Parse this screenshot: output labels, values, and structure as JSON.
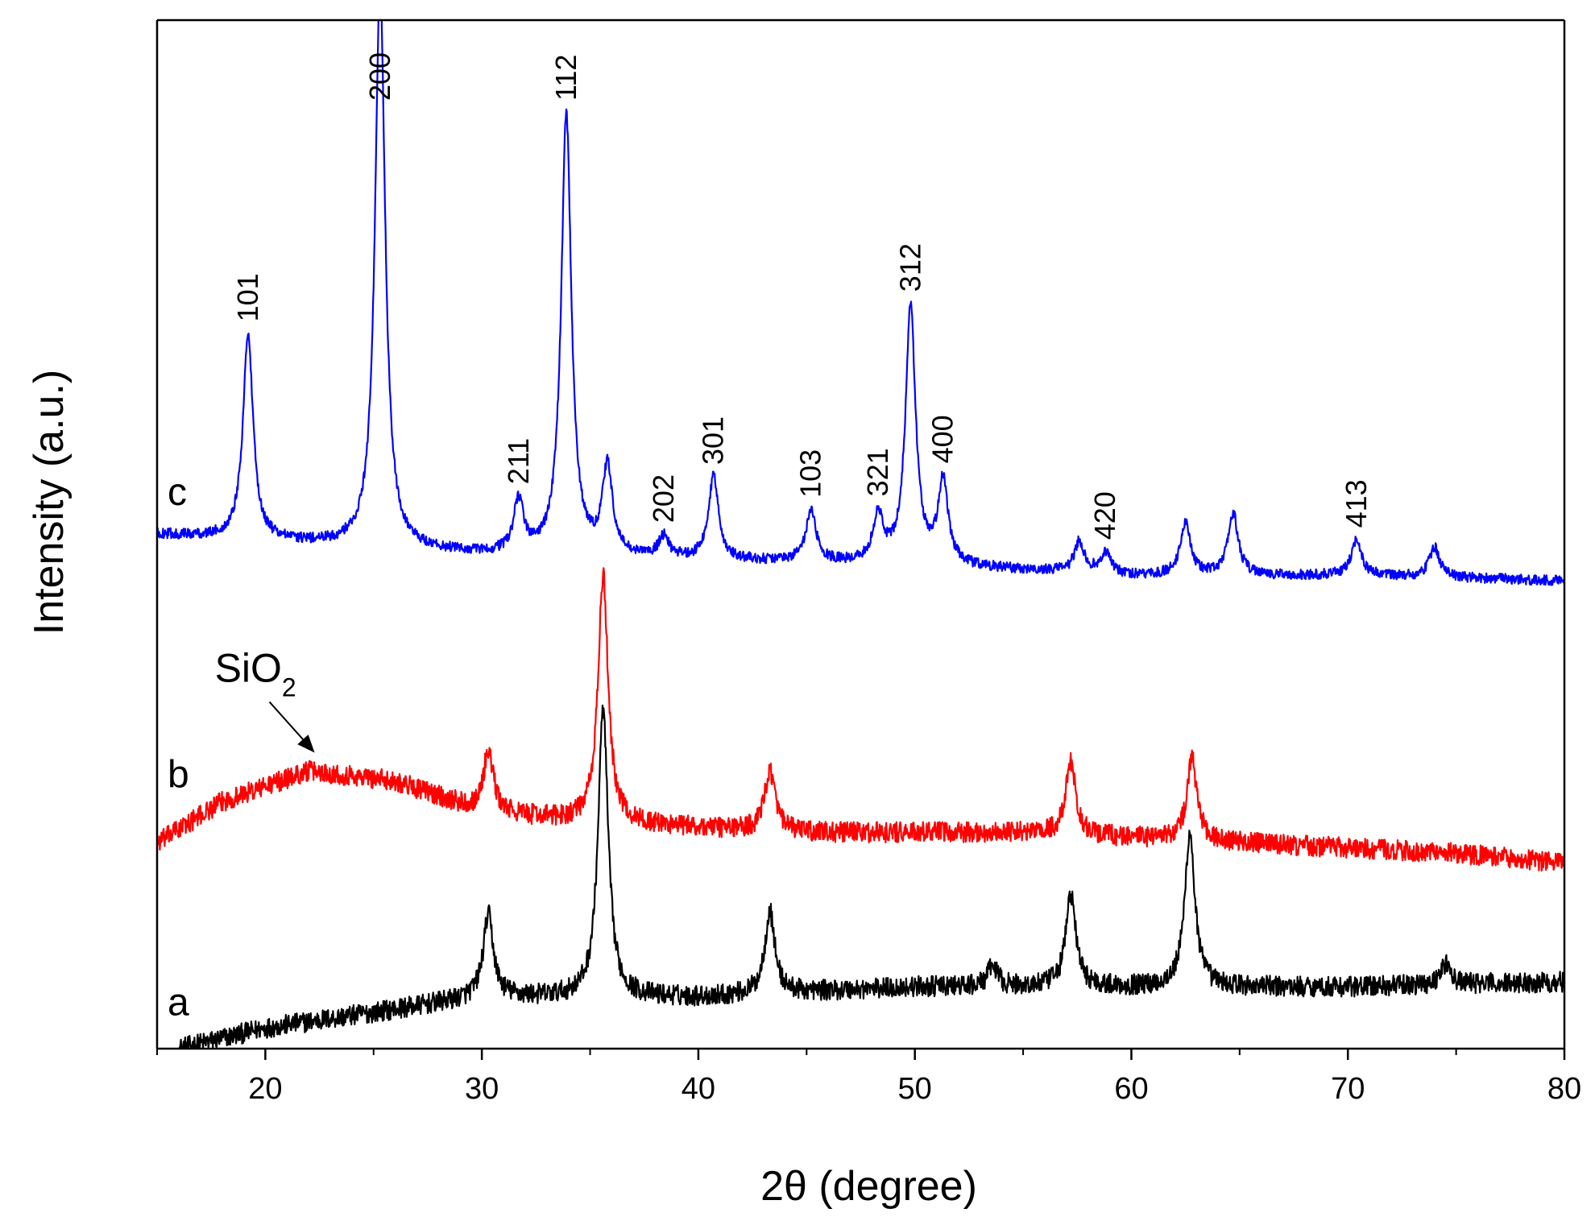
{
  "chart_data": {
    "type": "line",
    "title": "",
    "xlabel": "2θ (degree)",
    "ylabel": "Intensity (a.u.)",
    "xlim": [
      15,
      80
    ],
    "xticks": [
      20,
      30,
      40,
      50,
      60,
      70,
      80
    ],
    "ylim": [
      0,
      100
    ],
    "grid": false,
    "legend": "none",
    "series": [
      {
        "name": "a",
        "label": "a",
        "color": "#000000",
        "baseline": [
          [
            16,
            0.0
          ],
          [
            20,
            2.0
          ],
          [
            30,
            5.0
          ],
          [
            40,
            5.0
          ],
          [
            50,
            6.0
          ],
          [
            60,
            6.0
          ],
          [
            70,
            6.0
          ],
          [
            80,
            6.5
          ]
        ],
        "peaks": [
          [
            30.3,
            8.0
          ],
          [
            35.6,
            28.0
          ],
          [
            43.3,
            8.0
          ],
          [
            53.6,
            2.0
          ],
          [
            57.2,
            9.0
          ],
          [
            62.7,
            15.0
          ],
          [
            74.5,
            2.0
          ]
        ],
        "noise": 2.0
      },
      {
        "name": "b",
        "label": "b",
        "color": "#ff0000",
        "baseline": [
          [
            15,
            20.0
          ],
          [
            18,
            24.0
          ],
          [
            22,
            27.0
          ],
          [
            26,
            26.0
          ],
          [
            30,
            23.0
          ],
          [
            35,
            22.0
          ],
          [
            45,
            21.0
          ],
          [
            55,
            21.0
          ],
          [
            65,
            20.0
          ],
          [
            75,
            19.0
          ],
          [
            80,
            18.0
          ]
        ],
        "peaks": [
          [
            30.3,
            6.0
          ],
          [
            35.6,
            24.0
          ],
          [
            43.3,
            6.0
          ],
          [
            57.2,
            7.0
          ],
          [
            62.8,
            8.0
          ]
        ],
        "noise": 2.0
      },
      {
        "name": "c",
        "label": "c",
        "color": "#0000ff",
        "baseline": [
          [
            15,
            50.0
          ],
          [
            30,
            48.0
          ],
          [
            40,
            47.5
          ],
          [
            50,
            47.0
          ],
          [
            60,
            46.0
          ],
          [
            70,
            46.0
          ],
          [
            80,
            45.5
          ]
        ],
        "peaks": [
          [
            19.2,
            20.0
          ],
          [
            25.3,
            55.0
          ],
          [
            31.7,
            5.0
          ],
          [
            33.9,
            43.0
          ],
          [
            35.8,
            8.5
          ],
          [
            38.4,
            2.0
          ],
          [
            40.7,
            8.0
          ],
          [
            45.2,
            5.0
          ],
          [
            48.3,
            4.5
          ],
          [
            49.8,
            25.0
          ],
          [
            51.3,
            8.0
          ],
          [
            57.6,
            3.0
          ],
          [
            58.8,
            2.0
          ],
          [
            62.5,
            5.0
          ],
          [
            64.7,
            6.0
          ],
          [
            70.4,
            3.5
          ],
          [
            74.0,
            3.0
          ]
        ],
        "noise": 1.0
      }
    ],
    "peak_labels": [
      {
        "text": "101",
        "x": 19.2
      },
      {
        "text": "200",
        "x": 25.3
      },
      {
        "text": "211",
        "x": 31.7
      },
      {
        "text": "112",
        "x": 33.9
      },
      {
        "text": "202",
        "x": 38.4
      },
      {
        "text": "301",
        "x": 40.7
      },
      {
        "text": "103",
        "x": 45.2
      },
      {
        "text": "321",
        "x": 48.3
      },
      {
        "text": "312",
        "x": 49.8
      },
      {
        "text": "400",
        "x": 51.3
      },
      {
        "text": "420",
        "x": 58.8
      },
      {
        "text": "413",
        "x": 70.4
      }
    ],
    "annotations": [
      {
        "text": "SiO",
        "subscript": "2",
        "target_x": 22.5,
        "target_series": "b"
      }
    ]
  }
}
